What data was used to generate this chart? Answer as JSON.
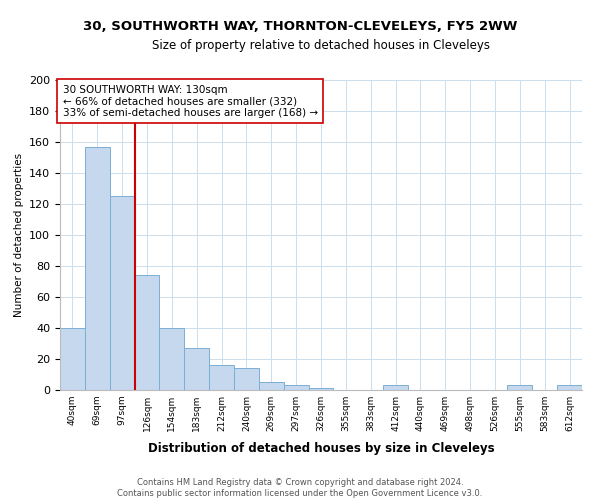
{
  "title": "30, SOUTHWORTH WAY, THORNTON-CLEVELEYS, FY5 2WW",
  "subtitle": "Size of property relative to detached houses in Cleveleys",
  "xlabel": "Distribution of detached houses by size in Cleveleys",
  "ylabel": "Number of detached properties",
  "bar_labels": [
    "40sqm",
    "69sqm",
    "97sqm",
    "126sqm",
    "154sqm",
    "183sqm",
    "212sqm",
    "240sqm",
    "269sqm",
    "297sqm",
    "326sqm",
    "355sqm",
    "383sqm",
    "412sqm",
    "440sqm",
    "469sqm",
    "498sqm",
    "526sqm",
    "555sqm",
    "583sqm",
    "612sqm"
  ],
  "bar_values": [
    40,
    157,
    125,
    74,
    40,
    27,
    16,
    14,
    5,
    3,
    1,
    0,
    0,
    3,
    0,
    0,
    0,
    0,
    3,
    0,
    3
  ],
  "bar_color": "#c5d8ee",
  "bar_edge_color": "#7bafd4",
  "property_line_color": "#cc0000",
  "ylim": [
    0,
    200
  ],
  "yticks": [
    0,
    20,
    40,
    60,
    80,
    100,
    120,
    140,
    160,
    180,
    200
  ],
  "annotation_title": "30 SOUTHWORTH WAY: 130sqm",
  "annotation_line1": "← 66% of detached houses are smaller (332)",
  "annotation_line2": "33% of semi-detached houses are larger (168) →",
  "annotation_box_color": "#ffffff",
  "annotation_box_edge": "#cc0000",
  "footer_line1": "Contains HM Land Registry data © Crown copyright and database right 2024.",
  "footer_line2": "Contains public sector information licensed under the Open Government Licence v3.0.",
  "background_color": "#ffffff",
  "grid_color": "#ccdded"
}
